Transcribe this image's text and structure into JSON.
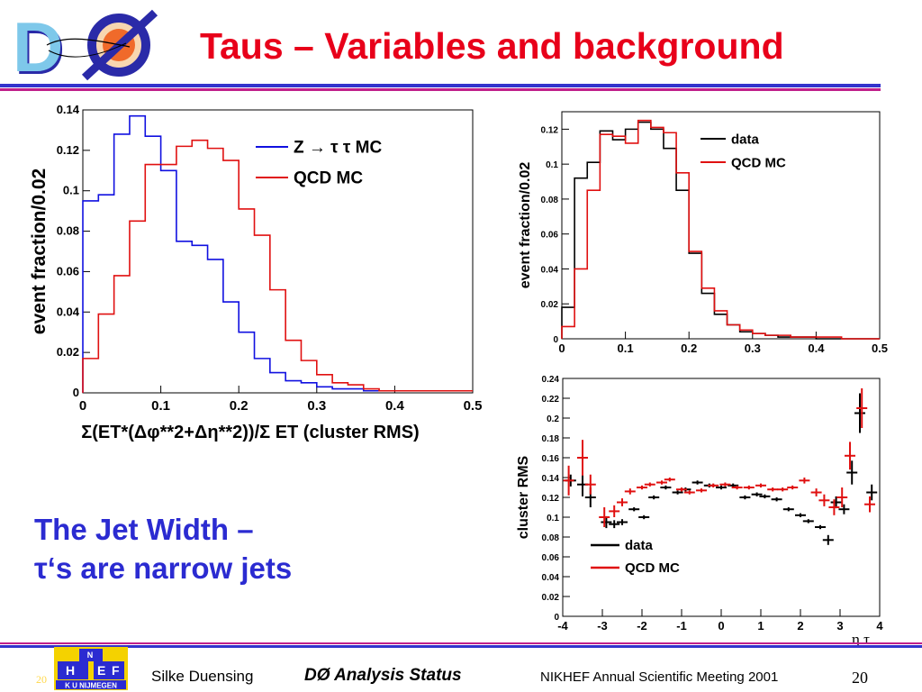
{
  "slide": {
    "title": "Taus – Variables and background",
    "logo_text": "DØ",
    "heading_line1": "The Jet Width –",
    "heading_line2": "τ‘s are narrow jets",
    "footer": {
      "author": "Silke Duensing",
      "talk": "DØ Analysis Status",
      "meeting": "NIKHEF Annual Scientific Meeting 2001",
      "page": "20",
      "page_small": "20",
      "institute_logo_lines": [
        "N",
        "H",
        "E",
        "F",
        "K U NIJMEGEN"
      ]
    },
    "colors": {
      "title": "#e8001a",
      "heading": "#2b2bd1",
      "rule_blue": "#3333cc",
      "rule_magenta": "#c0208a"
    }
  },
  "chart_data": [
    {
      "type": "line",
      "step": true,
      "title": "",
      "xlabel": "Σ(ET*(Δφ**2+Δη**2))/Σ ET (cluster RMS)",
      "ylabel": "event fraction/0.02",
      "xlim": [
        0,
        0.5
      ],
      "ylim": [
        0,
        0.14
      ],
      "xticks": [
        "0",
        "0.1",
        "0.2",
        "0.3",
        "0.4",
        "0.5"
      ],
      "yticks": [
        "0",
        "0.02",
        "0.04",
        "0.06",
        "0.08",
        "0.1",
        "0.12",
        "0.14"
      ],
      "legend_position": "top-right",
      "bin_edges": [
        0,
        0.02,
        0.04,
        0.06,
        0.08,
        0.1,
        0.12,
        0.14,
        0.16,
        0.18,
        0.2,
        0.22,
        0.24,
        0.26,
        0.28,
        0.3,
        0.32,
        0.34,
        0.36,
        0.38,
        0.4,
        0.42,
        0.44,
        0.46,
        0.48,
        0.5
      ],
      "series": [
        {
          "name": "Z → τ τ MC",
          "color": "#1010e0",
          "values": [
            0.095,
            0.098,
            0.128,
            0.137,
            0.127,
            0.11,
            0.075,
            0.073,
            0.066,
            0.045,
            0.03,
            0.017,
            0.01,
            0.006,
            0.005,
            0.003,
            0.002,
            0.002,
            0.001,
            0.001,
            0.001,
            0.001,
            0.001,
            0.001,
            0.001
          ]
        },
        {
          "name": "QCD MC",
          "color": "#e01010",
          "values": [
            0.017,
            0.039,
            0.058,
            0.085,
            0.113,
            0.113,
            0.122,
            0.125,
            0.121,
            0.115,
            0.091,
            0.078,
            0.051,
            0.026,
            0.016,
            0.009,
            0.005,
            0.004,
            0.002,
            0.001,
            0.001,
            0.001,
            0.001,
            0.001,
            0.001
          ]
        }
      ]
    },
    {
      "type": "line",
      "step": true,
      "title": "",
      "xlabel": "",
      "ylabel": "event fraction/0.02",
      "xlim": [
        0,
        0.5
      ],
      "ylim": [
        0,
        0.13
      ],
      "xticks": [
        "0",
        "0.1",
        "0.2",
        "0.3",
        "0.4",
        "0.5"
      ],
      "yticks": [
        "0",
        "0.02",
        "0.04",
        "0.06",
        "0.08",
        "0.1",
        "0.12"
      ],
      "legend_position": "top-right",
      "bin_edges": [
        0,
        0.02,
        0.04,
        0.06,
        0.08,
        0.1,
        0.12,
        0.14,
        0.16,
        0.18,
        0.2,
        0.22,
        0.24,
        0.26,
        0.28,
        0.3,
        0.32,
        0.34,
        0.36,
        0.38,
        0.4,
        0.42,
        0.44,
        0.46,
        0.48,
        0.5
      ],
      "series": [
        {
          "name": "data",
          "color": "#000000",
          "values": [
            0.018,
            0.092,
            0.101,
            0.119,
            0.114,
            0.12,
            0.124,
            0.12,
            0.109,
            0.085,
            0.049,
            0.026,
            0.014,
            0.008,
            0.004,
            0.003,
            0.002,
            0.001,
            0.001,
            0.001,
            0.0,
            0.0,
            0.0,
            0.0,
            0.0
          ]
        },
        {
          "name": "QCD MC",
          "color": "#e01010",
          "values": [
            0.007,
            0.04,
            0.085,
            0.117,
            0.116,
            0.112,
            0.125,
            0.121,
            0.118,
            0.095,
            0.05,
            0.029,
            0.016,
            0.008,
            0.005,
            0.003,
            0.002,
            0.002,
            0.001,
            0.001,
            0.001,
            0.001,
            0.0,
            0.0,
            0.0
          ]
        }
      ]
    },
    {
      "type": "scatter",
      "title": "",
      "xlabel": "η τ",
      "ylabel": "cluster RMS",
      "xlim": [
        -4,
        4
      ],
      "ylim": [
        0,
        0.24
      ],
      "xticks": [
        "-4",
        "-3",
        "-2",
        "-1",
        "0",
        "1",
        "2",
        "3",
        "4"
      ],
      "yticks": [
        "0",
        "0.02",
        "0.04",
        "0.06",
        "0.08",
        "0.1",
        "0.12",
        "0.14",
        "0.16",
        "0.18",
        "0.2",
        "0.22",
        "0.24"
      ],
      "legend_position": "bottom-left",
      "series": [
        {
          "name": "data",
          "color": "#000000",
          "x": [
            -3.8,
            -3.5,
            -3.3,
            -2.9,
            -2.7,
            -2.5,
            -2.2,
            -1.95,
            -1.7,
            -1.4,
            -1.1,
            -0.9,
            -0.6,
            -0.3,
            0.0,
            0.3,
            0.6,
            0.9,
            1.1,
            1.4,
            1.7,
            2.0,
            2.2,
            2.5,
            2.7,
            2.9,
            3.1,
            3.3,
            3.5,
            3.8
          ],
          "y": [
            0.137,
            0.133,
            0.12,
            0.095,
            0.093,
            0.095,
            0.108,
            0.1,
            0.12,
            0.13,
            0.125,
            0.128,
            0.135,
            0.132,
            0.13,
            0.132,
            0.12,
            0.123,
            0.121,
            0.118,
            0.108,
            0.102,
            0.096,
            0.09,
            0.077,
            0.115,
            0.108,
            0.145,
            0.205,
            0.125
          ],
          "yerr": [
            0.006,
            0.012,
            0.01,
            0.006,
            0.004,
            0.003,
            0.002,
            0.002,
            0.002,
            0.002,
            0.002,
            0.002,
            0.002,
            0.002,
            0.002,
            0.002,
            0.002,
            0.002,
            0.002,
            0.002,
            0.002,
            0.002,
            0.002,
            0.002,
            0.005,
            0.006,
            0.005,
            0.012,
            0.02,
            0.008
          ]
        },
        {
          "name": "QCD MC",
          "color": "#e01010",
          "x": [
            -3.85,
            -3.5,
            -3.3,
            -2.95,
            -2.7,
            -2.5,
            -2.3,
            -2.0,
            -1.8,
            -1.5,
            -1.3,
            -1.0,
            -0.8,
            -0.5,
            -0.2,
            0.1,
            0.4,
            0.7,
            1.0,
            1.3,
            1.55,
            1.8,
            2.1,
            2.4,
            2.6,
            2.85,
            3.05,
            3.25,
            3.55,
            3.75
          ],
          "y": [
            0.137,
            0.16,
            0.133,
            0.1,
            0.106,
            0.115,
            0.126,
            0.13,
            0.133,
            0.135,
            0.138,
            0.128,
            0.125,
            0.127,
            0.132,
            0.133,
            0.13,
            0.13,
            0.132,
            0.128,
            0.128,
            0.13,
            0.137,
            0.125,
            0.117,
            0.11,
            0.12,
            0.162,
            0.21,
            0.113
          ],
          "yerr": [
            0.015,
            0.018,
            0.01,
            0.01,
            0.006,
            0.004,
            0.003,
            0.002,
            0.002,
            0.002,
            0.002,
            0.002,
            0.002,
            0.002,
            0.002,
            0.002,
            0.002,
            0.002,
            0.002,
            0.002,
            0.002,
            0.002,
            0.003,
            0.004,
            0.006,
            0.008,
            0.01,
            0.014,
            0.02,
            0.008
          ]
        }
      ]
    }
  ]
}
